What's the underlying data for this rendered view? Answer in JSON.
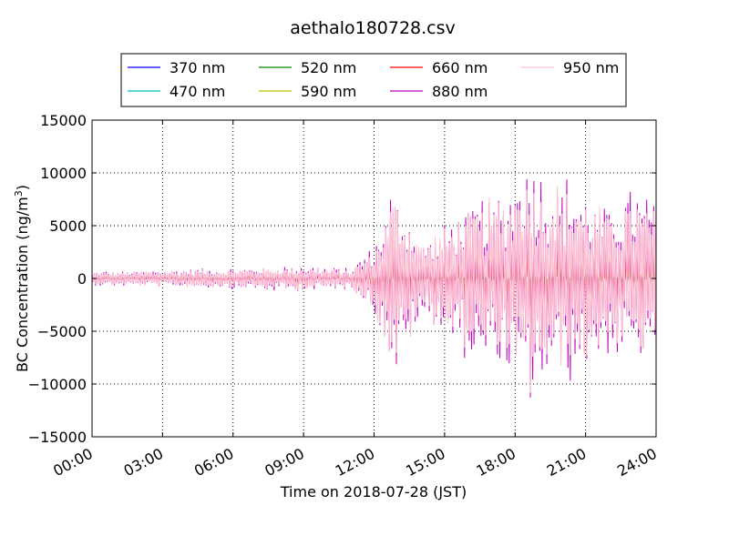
{
  "chart_data": {
    "type": "line",
    "title": "aethalo180728.csv",
    "xlabel": "Time on 2018-07-28 (JST)",
    "ylabel_main": "BC Concentration (ng/m",
    "ylabel_sup": "3",
    "ylabel_close": ")",
    "xlim": [
      "00:00",
      "24:00"
    ],
    "ylim": [
      -15000,
      15000
    ],
    "x_ticks": [
      "00:00",
      "03:00",
      "06:00",
      "09:00",
      "12:00",
      "15:00",
      "18:00",
      "21:00",
      "24:00"
    ],
    "y_ticks": [
      "15000",
      "10000",
      "5000",
      "0",
      "−5000",
      "−10000",
      "−15000"
    ],
    "grid": true,
    "legend_placement": "top-center, above plot",
    "series": [
      {
        "name": "370 nm",
        "color": "#0000ff",
        "amp_scale": 0.12
      },
      {
        "name": "470 nm",
        "color": "#00bfbf",
        "amp_scale": 0.14
      },
      {
        "name": "520 nm",
        "color": "#008000",
        "amp_scale": 0.16
      },
      {
        "name": "590 nm",
        "color": "#bfbf00",
        "amp_scale": 0.18
      },
      {
        "name": "660 nm",
        "color": "#ff0000",
        "amp_scale": 0.28
      },
      {
        "name": "880 nm",
        "color": "#bf00bf",
        "amp_scale": 1.0
      },
      {
        "name": "950 nm",
        "color": "#ffc0cb",
        "amp_scale": 0.92
      }
    ],
    "envelope_880nm": {
      "hours": [
        0,
        3,
        6,
        9,
        10,
        11,
        12,
        12.8,
        13.5,
        14,
        15,
        16,
        17,
        18,
        18.2,
        19,
        20,
        21,
        22,
        23,
        24
      ],
      "amplitude": [
        600,
        800,
        900,
        1200,
        1000,
        900,
        3000,
        8500,
        6500,
        3500,
        5000,
        7000,
        7500,
        9000,
        12000,
        10000,
        9000,
        8000,
        6500,
        8000,
        8000
      ]
    }
  }
}
